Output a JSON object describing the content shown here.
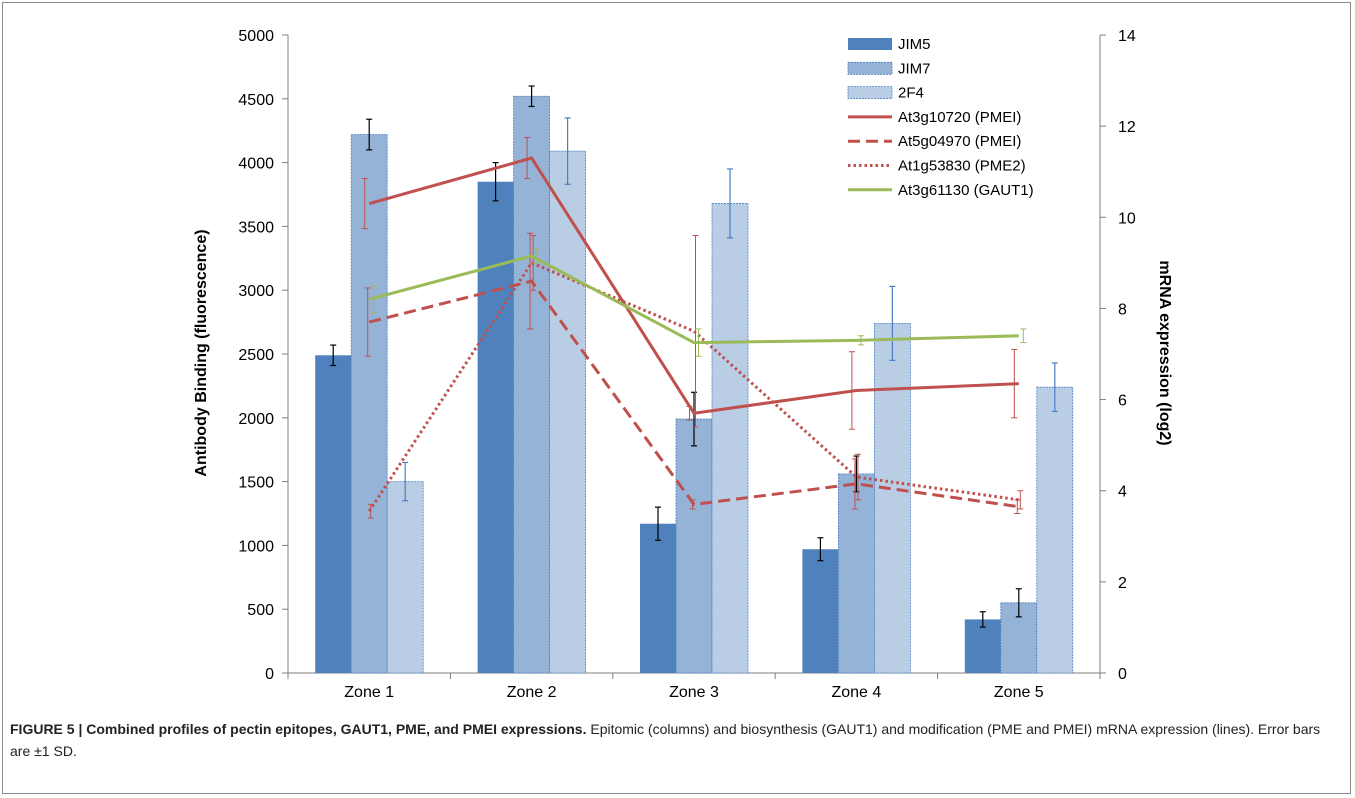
{
  "chart_data": {
    "type": "bar",
    "categories": [
      "Zone 1",
      "Zone 2",
      "Zone 3",
      "Zone 4",
      "Zone 5"
    ],
    "y_left": {
      "label": "Antibody Binding (fluorescence)",
      "min": 0,
      "max": 5000,
      "step": 500,
      "ticks": [
        "0",
        "500",
        "1000",
        "1500",
        "2000",
        "2500",
        "3000",
        "3500",
        "4000",
        "4500",
        "5000"
      ]
    },
    "y_right": {
      "label": "mRNA expression (log2)",
      "min": 0,
      "max": 14,
      "step": 2,
      "ticks": [
        "0",
        "2",
        "4",
        "6",
        "8",
        "10",
        "12",
        "14"
      ]
    },
    "bar_series": [
      {
        "name": "JIM5",
        "color": "#4f81bd",
        "values": [
          2490,
          3850,
          1170,
          970,
          420
        ],
        "errors": [
          80,
          150,
          130,
          90,
          60
        ],
        "error_color": "#000000"
      },
      {
        "name": "JIM7",
        "color": "#95b3d7",
        "values": [
          4220,
          4520,
          1990,
          1560,
          550
        ],
        "errors": [
          120,
          80,
          210,
          140,
          110
        ],
        "error_color": "#000000"
      },
      {
        "name": "2F4",
        "color": "#b9cde5",
        "values": [
          1500,
          4090,
          3680,
          2740,
          2240
        ],
        "errors": [
          150,
          260,
          270,
          290,
          190
        ],
        "error_color": "#4a7fc1"
      }
    ],
    "line_series": [
      {
        "name": "At3g10720 (PMEI)",
        "color": "#c0504d",
        "dash": "solid",
        "values": [
          10.3,
          11.3,
          5.7,
          6.2,
          6.35
        ],
        "errors": [
          0.55,
          0.45,
          0.15,
          0.85,
          0.75
        ]
      },
      {
        "name": "At5g04970 (PMEI)",
        "color": "#c0504d",
        "dash": "dashed",
        "values": [
          7.7,
          8.6,
          3.7,
          4.15,
          3.65
        ],
        "errors": [
          0.75,
          1.05,
          0.1,
          0.55,
          0.15
        ]
      },
      {
        "name": "At1g53830 (PME2)",
        "color": "#c0504d",
        "dash": "dotted",
        "values": [
          3.55,
          9.0,
          7.5,
          4.3,
          3.8
        ],
        "errors": [
          0.15,
          0.6,
          2.1,
          0.5,
          0.2
        ]
      },
      {
        "name": "At3g61130 (GAUT1)",
        "color": "#9bbb59",
        "dash": "solid",
        "values": [
          8.2,
          9.15,
          7.25,
          7.3,
          7.4
        ],
        "errors": [
          0.3,
          0.15,
          0.3,
          0.1,
          0.15
        ]
      }
    ]
  },
  "caption": {
    "bold": "FIGURE 5 | Combined profiles of pectin epitopes, GAUT1, PME, and PMEI expressions.",
    "rest": " Epitomic (columns) and biosynthesis (GAUT1) and modification (PME and PMEI) mRNA expression (lines). Error bars are ±1 SD."
  }
}
